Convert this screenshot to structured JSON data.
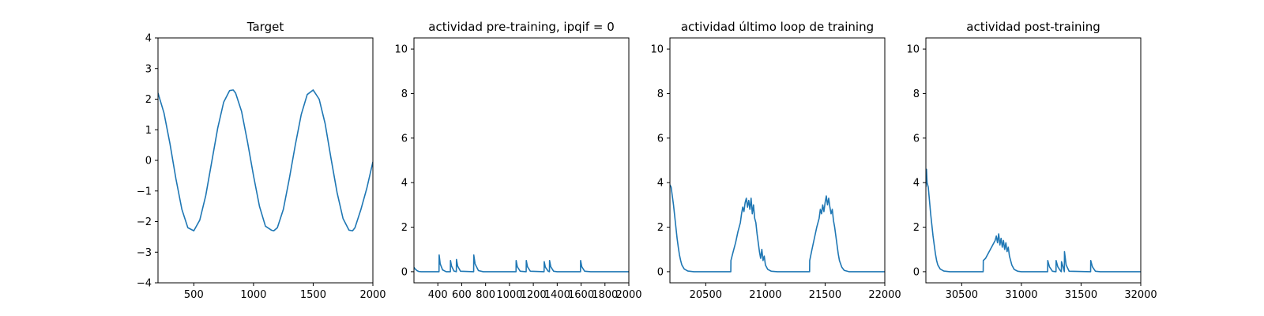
{
  "chart_data": [
    {
      "type": "line",
      "title": "Target",
      "xlim": [
        200,
        2000
      ],
      "ylim": [
        -4,
        4
      ],
      "xticks": [
        500,
        1000,
        1500,
        2000
      ],
      "yticks": [
        -4,
        -3,
        -2,
        -1,
        0,
        1,
        2,
        3,
        4
      ],
      "line_color": "#1f77b4",
      "series": [
        {
          "x": [
            200,
            250,
            300,
            350,
            400,
            450,
            500,
            550,
            600,
            650,
            700,
            750,
            800,
            830,
            850,
            900,
            950,
            1000,
            1050,
            1100,
            1150,
            1170,
            1200,
            1250,
            1300,
            1350,
            1400,
            1450,
            1500,
            1550,
            1600,
            1650,
            1700,
            1750,
            1800,
            1830,
            1850,
            1900,
            1950,
            2000
          ],
          "y": [
            2.2,
            1.55,
            0.55,
            -0.6,
            -1.6,
            -2.2,
            -2.3,
            -1.95,
            -1.15,
            -0.05,
            1.05,
            1.9,
            2.28,
            2.3,
            2.2,
            1.6,
            0.6,
            -0.5,
            -1.5,
            -2.15,
            -2.28,
            -2.3,
            -2.2,
            -1.6,
            -0.6,
            0.5,
            1.5,
            2.15,
            2.3,
            2.0,
            1.2,
            0.05,
            -1.05,
            -1.9,
            -2.28,
            -2.3,
            -2.2,
            -1.6,
            -0.9,
            -0.05
          ]
        }
      ]
    },
    {
      "type": "line",
      "title": "actividad pre-training, ipqif = 0",
      "xlim": [
        200,
        2000
      ],
      "ylim": [
        -0.5,
        10.5
      ],
      "xticks": [
        400,
        600,
        800,
        1000,
        1200,
        1400,
        1600,
        1800,
        2000
      ],
      "yticks": [
        0,
        2,
        4,
        6,
        8,
        10
      ],
      "line_color": "#1f77b4",
      "series": [
        {
          "x": [
            200,
            210,
            225,
            240,
            260,
            300,
            410,
            411,
            420,
            440,
            470,
            505,
            506,
            515,
            535,
            555,
            556,
            566,
            590,
            700,
            701,
            712,
            740,
            780,
            1055,
            1056,
            1066,
            1090,
            1140,
            1141,
            1151,
            1175,
            1290,
            1291,
            1301,
            1325,
            1335,
            1336,
            1346,
            1370,
            1400,
            1595,
            1596,
            1606,
            1630,
            1680,
            2000
          ],
          "y": [
            0.2,
            0.12,
            0.05,
            0.01,
            0.0,
            0.0,
            0.0,
            0.75,
            0.35,
            0.08,
            0.0,
            0.0,
            0.5,
            0.25,
            0.03,
            0.0,
            0.55,
            0.25,
            0.02,
            0.0,
            0.75,
            0.35,
            0.05,
            0.0,
            0.0,
            0.5,
            0.22,
            0.02,
            0.0,
            0.5,
            0.22,
            0.02,
            0.0,
            0.45,
            0.2,
            0.02,
            0.0,
            0.5,
            0.22,
            0.02,
            0.0,
            0.0,
            0.5,
            0.22,
            0.02,
            0.0,
            0.0
          ]
        }
      ]
    },
    {
      "type": "line",
      "title": "actividad último loop de training",
      "xlim": [
        20200,
        22000
      ],
      "ylim": [
        -0.5,
        10.5
      ],
      "xticks": [
        20500,
        21000,
        21500,
        22000
      ],
      "yticks": [
        0,
        2,
        4,
        6,
        8,
        10
      ],
      "line_color": "#1f77b4",
      "series": [
        {
          "x": [
            20200,
            20210,
            20220,
            20230,
            20240,
            20250,
            20260,
            20270,
            20280,
            20290,
            20300,
            20320,
            20350,
            20400,
            20710,
            20711,
            20730,
            20750,
            20770,
            20790,
            20800,
            20810,
            20820,
            20830,
            20840,
            20850,
            20860,
            20870,
            20880,
            20890,
            20900,
            20910,
            20920,
            20930,
            20940,
            20950,
            20960,
            20970,
            20980,
            20990,
            21000,
            21020,
            21050,
            21100,
            21370,
            21371,
            21390,
            21410,
            21430,
            21450,
            21460,
            21470,
            21480,
            21490,
            21500,
            21510,
            21520,
            21530,
            21540,
            21550,
            21560,
            21570,
            21580,
            21590,
            21600,
            21610,
            21620,
            21640,
            21660,
            21700,
            22000
          ],
          "y": [
            3.9,
            3.8,
            3.4,
            3.0,
            2.5,
            2.0,
            1.5,
            1.1,
            0.75,
            0.5,
            0.3,
            0.12,
            0.03,
            0.0,
            0.0,
            0.5,
            0.9,
            1.3,
            1.8,
            2.2,
            2.6,
            2.9,
            2.7,
            3.1,
            3.3,
            2.9,
            3.2,
            2.8,
            3.3,
            2.6,
            3.0,
            2.4,
            2.2,
            1.7,
            1.3,
            0.9,
            0.6,
            1.0,
            0.5,
            0.7,
            0.3,
            0.1,
            0.02,
            0.0,
            0.0,
            0.5,
            1.0,
            1.5,
            2.0,
            2.4,
            2.8,
            2.6,
            3.0,
            2.7,
            3.1,
            3.4,
            3.0,
            3.3,
            2.9,
            2.6,
            2.8,
            2.3,
            2.0,
            1.6,
            1.2,
            0.8,
            0.5,
            0.2,
            0.06,
            0.0,
            0.0
          ]
        }
      ]
    },
    {
      "type": "line",
      "title": "actividad post-training",
      "xlim": [
        30200,
        32000
      ],
      "ylim": [
        -0.5,
        10.5
      ],
      "xticks": [
        30500,
        31000,
        31500,
        32000
      ],
      "yticks": [
        0,
        2,
        4,
        6,
        8,
        10
      ],
      "line_color": "#1f77b4",
      "series": [
        {
          "x": [
            30200,
            30205,
            30210,
            30220,
            30230,
            30240,
            30250,
            30260,
            30270,
            30280,
            30290,
            30300,
            30320,
            30350,
            30400,
            30680,
            30681,
            30700,
            30720,
            30740,
            30760,
            30780,
            30790,
            30800,
            30810,
            30820,
            30830,
            30840,
            30850,
            30860,
            30870,
            30880,
            30890,
            30900,
            30910,
            30920,
            30940,
            30970,
            31000,
            31220,
            31221,
            31235,
            31260,
            31290,
            31291,
            31305,
            31330,
            31335,
            31336,
            31350,
            31360,
            31361,
            31375,
            31400,
            31580,
            31581,
            31595,
            31620,
            31660,
            32000
          ],
          "y": [
            3.8,
            4.6,
            4.0,
            3.8,
            3.2,
            2.6,
            2.1,
            1.6,
            1.2,
            0.8,
            0.5,
            0.3,
            0.12,
            0.03,
            0.0,
            0.0,
            0.5,
            0.6,
            0.8,
            1.0,
            1.2,
            1.4,
            1.6,
            1.3,
            1.7,
            1.2,
            1.5,
            1.1,
            1.4,
            1.0,
            1.3,
            0.9,
            1.1,
            0.7,
            0.5,
            0.3,
            0.1,
            0.02,
            0.0,
            0.0,
            0.5,
            0.22,
            0.02,
            0.0,
            0.5,
            0.22,
            0.02,
            0.0,
            0.45,
            0.2,
            0.0,
            0.9,
            0.3,
            0.02,
            0.0,
            0.5,
            0.22,
            0.02,
            0.0,
            0.0
          ]
        }
      ]
    }
  ]
}
